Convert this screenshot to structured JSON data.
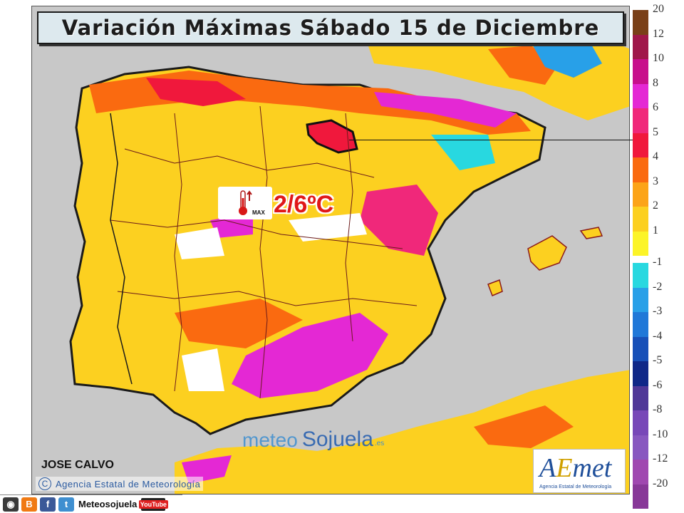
{
  "title": "Variación Máximas Sábado 15 de Diciembre",
  "annotation": {
    "value": "2/6ºC",
    "icon": "thermometer-max-icon",
    "icon_tag": "MAX"
  },
  "legend": {
    "positive": [
      {
        "label": "20",
        "color": "#7a4018"
      },
      {
        "label": "12",
        "color": "#a0184a"
      },
      {
        "label": "10",
        "color": "#c8108c"
      },
      {
        "label": "8",
        "color": "#e428d4"
      },
      {
        "label": "6",
        "color": "#f0287a"
      },
      {
        "label": "5",
        "color": "#f0183c"
      },
      {
        "label": "4",
        "color": "#fa6a10"
      },
      {
        "label": "3",
        "color": "#fca418"
      },
      {
        "label": "2",
        "color": "#fcd020"
      },
      {
        "label": "1",
        "color": "#fcf428"
      }
    ],
    "negative": [
      {
        "label": "-1",
        "color": "#28d8e0"
      },
      {
        "label": "-2",
        "color": "#28a0e8"
      },
      {
        "label": "-3",
        "color": "#2078d8"
      },
      {
        "label": "-4",
        "color": "#1850b8"
      },
      {
        "label": "-5",
        "color": "#102888"
      },
      {
        "label": "-6",
        "color": "#503898"
      },
      {
        "label": "-8",
        "color": "#7848b8"
      },
      {
        "label": "-10",
        "color": "#8858c0"
      },
      {
        "label": "-12",
        "color": "#a048b0"
      },
      {
        "label": "-20",
        "color": "#883898"
      }
    ]
  },
  "watermark": {
    "part1": "meteo",
    "part2": "Sojuela",
    "suffix": ".es"
  },
  "author": "JOSE CALVO",
  "credit": {
    "symbol": "C",
    "text": "Agencia Estatal de Meteorología"
  },
  "aemet": {
    "logo_a": "A",
    "logo_em": "E",
    "logo_met": "met",
    "subtitle": "Agencia Estatal de Meteorología"
  },
  "social": {
    "handle": "Meteosojuela",
    "youtube": "YouTube",
    "icons": [
      "instagram-icon",
      "blogger-icon",
      "facebook-icon",
      "twitter-icon",
      "youtube-icon"
    ]
  }
}
